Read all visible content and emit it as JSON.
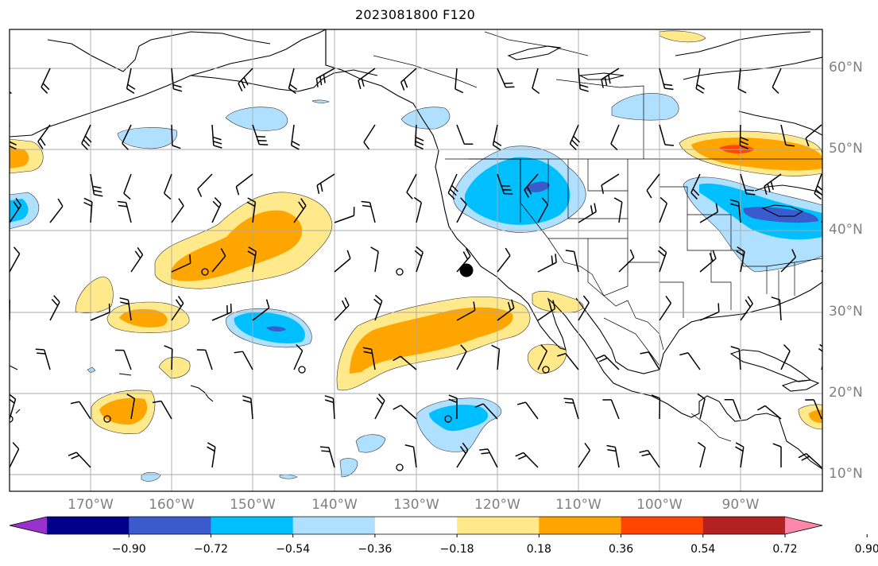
{
  "title": "2023081800 F120",
  "longitude_labels": [
    "170°W",
    "160°W",
    "150°W",
    "140°W",
    "130°W",
    "120°W",
    "110°W",
    "100°W",
    "90°W"
  ],
  "latitude_labels": [
    "60°N",
    "50°N",
    "40°N",
    "30°N",
    "20°N",
    "10°N"
  ],
  "colorbar": {
    "tick_labels": [
      "−0.90",
      "−0.72",
      "−0.54",
      "−0.36",
      "−0.18",
      "0.18",
      "0.36",
      "0.54",
      "0.72",
      "0.90"
    ],
    "colors": [
      "#9932cc",
      "#00008b",
      "#3a5bcc",
      "#00bfff",
      "#b0e0ff",
      "#ffffff",
      "#ffe98a",
      "#ffa500",
      "#ff4500",
      "#b22222",
      "#ff88aa"
    ]
  },
  "colors": {
    "land_outline": "#000000",
    "gridline": "#aaaaaa",
    "axis_label": "#808080"
  },
  "marker": "large black dot near 37°N 125°W"
}
